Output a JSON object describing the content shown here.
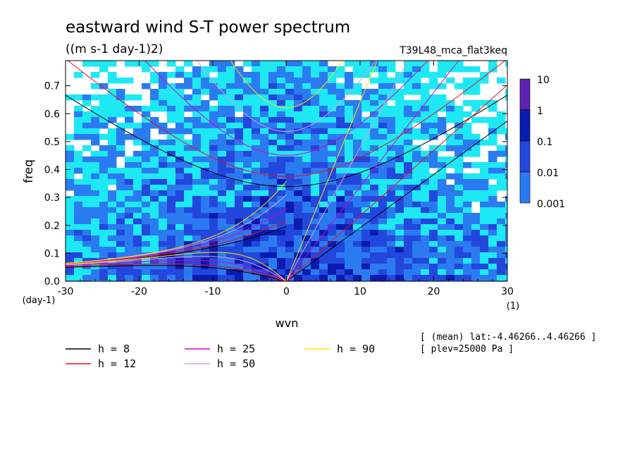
{
  "chart_data": {
    "type": "heatmap",
    "title": "eastward wind S-T power spectrum",
    "units": "((m s-1 day-1)2)",
    "experiment": "T39L48_mca_flat3keq",
    "xlabel": "wvn",
    "ylabel": "freq",
    "x_unit": "(1)",
    "y_unit": "(day-1)",
    "xlim": [
      -30,
      30
    ],
    "ylim": [
      0,
      0.79
    ],
    "x_ticks": [
      "-30",
      "-20",
      "-10",
      "0",
      "10",
      "20",
      "30"
    ],
    "x_tick_values": [
      -30,
      -20,
      -10,
      0,
      10,
      20,
      30
    ],
    "y_ticks": [
      "0.0",
      "0.1",
      "0.2",
      "0.3",
      "0.4",
      "0.5",
      "0.6",
      "0.7"
    ],
    "y_tick_values": [
      0,
      0.1,
      0.2,
      0.3,
      0.4,
      0.5,
      0.6,
      0.7
    ],
    "colorbar": {
      "labels": [
        "10",
        "1",
        "0.1",
        "0.01",
        "0.001"
      ],
      "colors": [
        "#5b21b0",
        "#0a1bb0",
        "#2347dc",
        "#2b7bf0",
        "#1ee8f4"
      ]
    },
    "series": [
      {
        "name": "h =  8",
        "color": "#000000",
        "h": 8
      },
      {
        "name": "h = 12",
        "color": "#e8101a",
        "h": 12
      },
      {
        "name": "h = 25",
        "color": "#d400c8",
        "h": 25
      },
      {
        "name": "h = 50",
        "color": "#e398e8",
        "h": 50
      },
      {
        "name": "h = 90",
        "color": "#ffe000",
        "h": 90
      }
    ],
    "notes": [
      "[ (mean) lat:-4.46266..4.46266 ]",
      "[ plev=25000 Pa ]"
    ]
  }
}
